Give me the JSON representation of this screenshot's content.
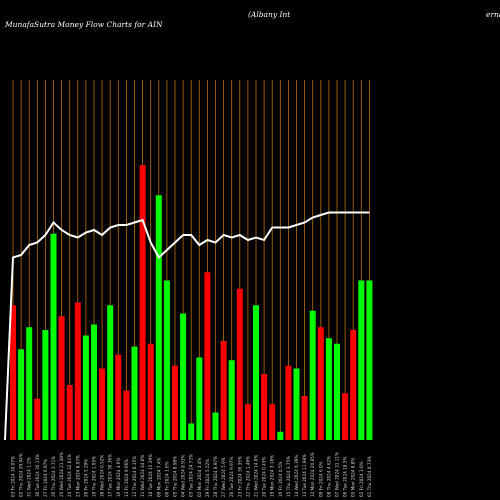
{
  "header": {
    "site": "MunafaSutra",
    "title_middle": " Money Flow  Charts for AIN",
    "company": "(Albany Int",
    "company_cut": "erna"
  },
  "colors": {
    "background": "#000000",
    "inflow": "#00ff00",
    "outflow": "#ff0000",
    "price_line": "#ffffff",
    "grid": "#b8700a"
  },
  "chart_data": {
    "type": "bar",
    "title": "MunafaSutra  Money Flow  Charts for AIN",
    "grid": true,
    "ylim": [
      0,
      100
    ],
    "price_ylim": [
      0,
      100
    ],
    "categories": [
      "03 Fri 2024 10.07%",
      "02 Thu 2024 29.94%",
      "31 Wed 2024 1.2%",
      "30 Tue 2024 35.13%",
      "27 Fri 2024 6.97%",
      "26 Thu 2024 3.71%",
      "25 Wed 2024 21.48%",
      "24 Tue 2024 32.01%",
      "23 Mon 2024 8.97%",
      "20 Fri 2024 5.29%",
      "19 Thu 2024 1.95%",
      "18 Wed 2024 0.52%",
      "17 Tue 2024 30.36%",
      "16 Mon 2024 4.6%",
      "13 Fri 2024 9.66%",
      "12 Thu 2024 0.35%",
      "11 Wed 2024 44.0%",
      "10 Tue 2024 15.39%",
      "09 Mon 2024 7.4%",
      "06 Fri 2024 1.6%",
      "05 Thu 2024 8.98%",
      "04 Wed 2024 8.91%",
      "03 Tue 2024 24.72%",
      "02 Mon 2024 3.4%",
      "29 Fri 2024 5.52%",
      "28 Thu 2024 8.97%",
      "27 Wed 2024 5.9%",
      "26 Tue 2024 9.97%",
      "23 Fri 2024 36.35%",
      "22 Thu 2024 1.46%",
      "21 Wed 2024 14.0%",
      "20 Tue 2024 0.43%",
      "19 Mon 2024 3.18%",
      "16 Fri 2024 0.5%",
      "15 Thu 2024 3.75%",
      "14 Wed 2024 6.39%",
      "13 Tue 2024 11.98%",
      "12 Mon 2024 20.85%",
      "09 Fri 2024 6.0%",
      "08 Thu 2024 4.62%",
      "07 Wed 2024 31.11%",
      "06 Tue 2024 18.5%",
      "05 Mon 2024 8.8%",
      "02 Fri 2024 3.0%",
      "01 Thu 2024 0.73%"
    ],
    "series": [
      {
        "values": [
          49,
          33,
          41,
          15,
          40,
          75,
          45,
          20,
          50,
          38,
          42,
          26,
          49,
          31,
          18,
          34,
          100,
          35,
          89,
          58,
          27,
          46,
          6,
          30,
          61,
          10,
          36,
          29,
          55,
          13,
          49,
          24,
          13,
          3,
          27,
          26,
          16,
          47,
          41,
          37,
          35,
          17,
          40,
          58,
          58
        ],
        "directions": [
          "out",
          "in",
          "in",
          "out",
          "in",
          "in",
          "out",
          "out",
          "out",
          "in",
          "in",
          "out",
          "in",
          "out",
          "out",
          "in",
          "out",
          "out",
          "in",
          "in",
          "out",
          "in",
          "in",
          "in",
          "out",
          "in",
          "out",
          "in",
          "out",
          "out",
          "in",
          "out",
          "out",
          "in",
          "out",
          "in",
          "out",
          "in",
          "out",
          "in",
          "in",
          "out",
          "out",
          "in",
          "in"
        ]
      },
      {
        "type": "line",
        "values": [
          73,
          74,
          78,
          79,
          82,
          87,
          84,
          82,
          81,
          83,
          84,
          82,
          85,
          86,
          86,
          87,
          88,
          79,
          73,
          76,
          79,
          82,
          82,
          78,
          80,
          79,
          82,
          81,
          82,
          80,
          81,
          80,
          85,
          85,
          85,
          86,
          87,
          89,
          90,
          91,
          91,
          91,
          91,
          91,
          91
        ]
      }
    ]
  }
}
